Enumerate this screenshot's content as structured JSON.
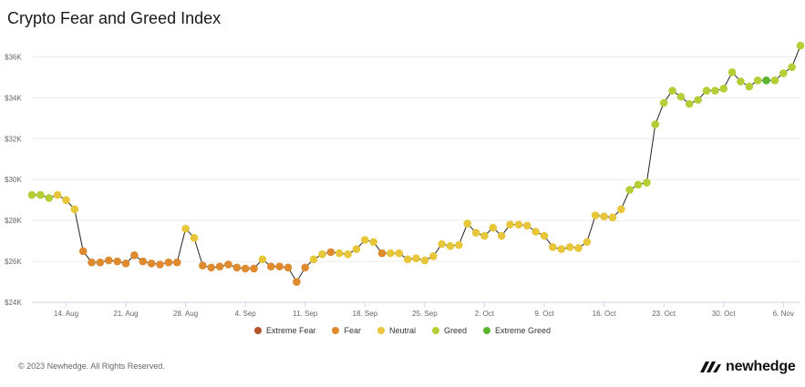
{
  "header": {
    "title": "Crypto Fear and Greed Index"
  },
  "footer": {
    "copyright": "© 2023 Newhedge. All Rights Reserved.",
    "brand": "newhedge"
  },
  "chart_data": {
    "type": "scatter",
    "title": "Crypto Fear and Greed Index",
    "ylim": [
      24000,
      37000
    ],
    "y_ticks": [
      24000,
      26000,
      28000,
      30000,
      32000,
      34000,
      36000
    ],
    "y_tick_labels": [
      "$24K",
      "$26K",
      "$28K",
      "$30K",
      "$32K",
      "$34K",
      "$36K"
    ],
    "x_tick_labels": [
      "14. Aug",
      "21. Aug",
      "28. Aug",
      "4. Sep",
      "11. Sep",
      "18. Sep",
      "25. Sep",
      "2. Oct",
      "9. Oct",
      "16. Oct",
      "23. Oct",
      "30. Oct",
      "6. Nov"
    ],
    "x_tick_dates": [
      "2023-08-14",
      "2023-08-21",
      "2023-08-28",
      "2023-09-04",
      "2023-09-11",
      "2023-09-18",
      "2023-09-25",
      "2023-10-02",
      "2023-10-09",
      "2023-10-16",
      "2023-10-23",
      "2023-10-30",
      "2023-11-06"
    ],
    "grid": true,
    "legend_position": "bottom",
    "categories": [
      {
        "name": "Extreme Fear",
        "color": "#b5532b"
      },
      {
        "name": "Fear",
        "color": "#df8a2e"
      },
      {
        "name": "Neutral",
        "color": "#e7c63a"
      },
      {
        "name": "Greed",
        "color": "#b4cf35"
      },
      {
        "name": "Extreme Greed",
        "color": "#5bb531"
      }
    ],
    "line_color": "#222222",
    "points": [
      {
        "x": "2023-08-10",
        "y": 29250,
        "c": "Greed"
      },
      {
        "x": "2023-08-11",
        "y": 29250,
        "c": "Greed"
      },
      {
        "x": "2023-08-12",
        "y": 29100,
        "c": "Greed"
      },
      {
        "x": "2023-08-13",
        "y": 29250,
        "c": "Neutral"
      },
      {
        "x": "2023-08-14",
        "y": 29000,
        "c": "Neutral"
      },
      {
        "x": "2023-08-15",
        "y": 28550,
        "c": "Neutral"
      },
      {
        "x": "2023-08-16",
        "y": 26500,
        "c": "Fear"
      },
      {
        "x": "2023-08-17",
        "y": 25950,
        "c": "Fear"
      },
      {
        "x": "2023-08-18",
        "y": 25950,
        "c": "Fear"
      },
      {
        "x": "2023-08-19",
        "y": 26050,
        "c": "Fear"
      },
      {
        "x": "2023-08-20",
        "y": 26000,
        "c": "Fear"
      },
      {
        "x": "2023-08-21",
        "y": 25900,
        "c": "Fear"
      },
      {
        "x": "2023-08-22",
        "y": 26300,
        "c": "Fear"
      },
      {
        "x": "2023-08-23",
        "y": 26000,
        "c": "Fear"
      },
      {
        "x": "2023-08-24",
        "y": 25900,
        "c": "Fear"
      },
      {
        "x": "2023-08-25",
        "y": 25850,
        "c": "Fear"
      },
      {
        "x": "2023-08-26",
        "y": 25950,
        "c": "Fear"
      },
      {
        "x": "2023-08-27",
        "y": 25950,
        "c": "Fear"
      },
      {
        "x": "2023-08-28",
        "y": 27600,
        "c": "Neutral"
      },
      {
        "x": "2023-08-29",
        "y": 27150,
        "c": "Neutral"
      },
      {
        "x": "2023-08-30",
        "y": 25800,
        "c": "Fear"
      },
      {
        "x": "2023-08-31",
        "y": 25700,
        "c": "Fear"
      },
      {
        "x": "2023-09-01",
        "y": 25750,
        "c": "Fear"
      },
      {
        "x": "2023-09-02",
        "y": 25850,
        "c": "Fear"
      },
      {
        "x": "2023-09-03",
        "y": 25700,
        "c": "Fear"
      },
      {
        "x": "2023-09-04",
        "y": 25650,
        "c": "Fear"
      },
      {
        "x": "2023-09-05",
        "y": 25650,
        "c": "Fear"
      },
      {
        "x": "2023-09-06",
        "y": 26100,
        "c": "Neutral"
      },
      {
        "x": "2023-09-07",
        "y": 25750,
        "c": "Fear"
      },
      {
        "x": "2023-09-08",
        "y": 25750,
        "c": "Fear"
      },
      {
        "x": "2023-09-09",
        "y": 25700,
        "c": "Fear"
      },
      {
        "x": "2023-09-10",
        "y": 25000,
        "c": "Fear"
      },
      {
        "x": "2023-09-11",
        "y": 25700,
        "c": "Fear"
      },
      {
        "x": "2023-09-12",
        "y": 26100,
        "c": "Neutral"
      },
      {
        "x": "2023-09-13",
        "y": 26350,
        "c": "Neutral"
      },
      {
        "x": "2023-09-14",
        "y": 26450,
        "c": "Fear"
      },
      {
        "x": "2023-09-15",
        "y": 26400,
        "c": "Neutral"
      },
      {
        "x": "2023-09-16",
        "y": 26350,
        "c": "Neutral"
      },
      {
        "x": "2023-09-17",
        "y": 26600,
        "c": "Neutral"
      },
      {
        "x": "2023-09-18",
        "y": 27050,
        "c": "Neutral"
      },
      {
        "x": "2023-09-19",
        "y": 26950,
        "c": "Neutral"
      },
      {
        "x": "2023-09-20",
        "y": 26400,
        "c": "Fear"
      },
      {
        "x": "2023-09-21",
        "y": 26400,
        "c": "Neutral"
      },
      {
        "x": "2023-09-22",
        "y": 26400,
        "c": "Neutral"
      },
      {
        "x": "2023-09-23",
        "y": 26100,
        "c": "Neutral"
      },
      {
        "x": "2023-09-24",
        "y": 26150,
        "c": "Neutral"
      },
      {
        "x": "2023-09-25",
        "y": 26050,
        "c": "Neutral"
      },
      {
        "x": "2023-09-26",
        "y": 26250,
        "c": "Neutral"
      },
      {
        "x": "2023-09-27",
        "y": 26850,
        "c": "Neutral"
      },
      {
        "x": "2023-09-28",
        "y": 26750,
        "c": "Neutral"
      },
      {
        "x": "2023-09-29",
        "y": 26800,
        "c": "Neutral"
      },
      {
        "x": "2023-09-30",
        "y": 27850,
        "c": "Neutral"
      },
      {
        "x": "2023-10-01",
        "y": 27400,
        "c": "Neutral"
      },
      {
        "x": "2023-10-02",
        "y": 27250,
        "c": "Neutral"
      },
      {
        "x": "2023-10-03",
        "y": 27650,
        "c": "Neutral"
      },
      {
        "x": "2023-10-04",
        "y": 27250,
        "c": "Neutral"
      },
      {
        "x": "2023-10-05",
        "y": 27800,
        "c": "Neutral"
      },
      {
        "x": "2023-10-06",
        "y": 27800,
        "c": "Neutral"
      },
      {
        "x": "2023-10-07",
        "y": 27750,
        "c": "Neutral"
      },
      {
        "x": "2023-10-08",
        "y": 27450,
        "c": "Neutral"
      },
      {
        "x": "2023-10-09",
        "y": 27250,
        "c": "Neutral"
      },
      {
        "x": "2023-10-10",
        "y": 26700,
        "c": "Neutral"
      },
      {
        "x": "2023-10-11",
        "y": 26600,
        "c": "Neutral"
      },
      {
        "x": "2023-10-12",
        "y": 26700,
        "c": "Neutral"
      },
      {
        "x": "2023-10-13",
        "y": 26650,
        "c": "Neutral"
      },
      {
        "x": "2023-10-14",
        "y": 26950,
        "c": "Neutral"
      },
      {
        "x": "2023-10-15",
        "y": 28250,
        "c": "Neutral"
      },
      {
        "x": "2023-10-16",
        "y": 28200,
        "c": "Neutral"
      },
      {
        "x": "2023-10-17",
        "y": 28150,
        "c": "Neutral"
      },
      {
        "x": "2023-10-18",
        "y": 28550,
        "c": "Neutral"
      },
      {
        "x": "2023-10-19",
        "y": 29500,
        "c": "Greed"
      },
      {
        "x": "2023-10-20",
        "y": 29750,
        "c": "Greed"
      },
      {
        "x": "2023-10-21",
        "y": 29850,
        "c": "Greed"
      },
      {
        "x": "2023-10-22",
        "y": 32700,
        "c": "Greed"
      },
      {
        "x": "2023-10-23",
        "y": 33750,
        "c": "Greed"
      },
      {
        "x": "2023-10-24",
        "y": 34350,
        "c": "Greed"
      },
      {
        "x": "2023-10-25",
        "y": 34050,
        "c": "Greed"
      },
      {
        "x": "2023-10-26",
        "y": 33700,
        "c": "Greed"
      },
      {
        "x": "2023-10-27",
        "y": 33900,
        "c": "Greed"
      },
      {
        "x": "2023-10-28",
        "y": 34350,
        "c": "Greed"
      },
      {
        "x": "2023-10-29",
        "y": 34350,
        "c": "Greed"
      },
      {
        "x": "2023-10-30",
        "y": 34450,
        "c": "Greed"
      },
      {
        "x": "2023-10-31",
        "y": 35250,
        "c": "Greed"
      },
      {
        "x": "2023-11-01",
        "y": 34800,
        "c": "Greed"
      },
      {
        "x": "2023-11-02",
        "y": 34550,
        "c": "Greed"
      },
      {
        "x": "2023-11-03",
        "y": 34850,
        "c": "Greed"
      },
      {
        "x": "2023-11-04",
        "y": 34850,
        "c": "Extreme Greed"
      },
      {
        "x": "2023-11-05",
        "y": 34850,
        "c": "Greed"
      },
      {
        "x": "2023-11-06",
        "y": 35200,
        "c": "Greed"
      },
      {
        "x": "2023-11-07",
        "y": 35500,
        "c": "Greed"
      },
      {
        "x": "2023-11-08",
        "y": 36550,
        "c": "Greed"
      }
    ]
  }
}
